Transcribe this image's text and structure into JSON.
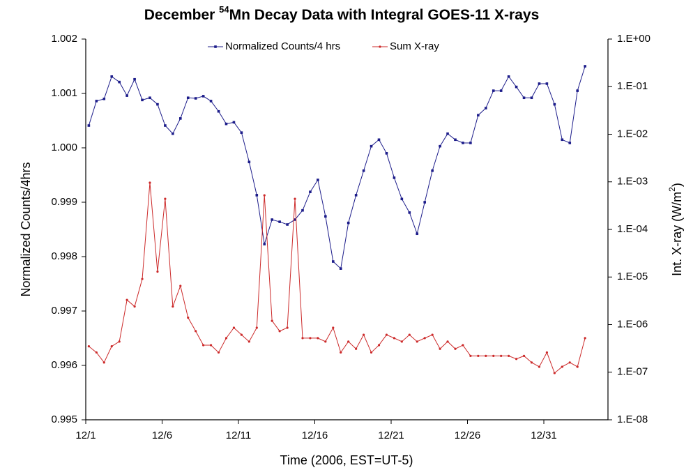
{
  "chart_data": {
    "type": "line",
    "title_prefix": "December ",
    "title_superscript": "54",
    "title_suffix": "Mn Decay Data with Integral  GOES-11 X-rays",
    "x_label": "Time (2006, EST=UT-5)",
    "y_label": "Normalized Counts/4hrs",
    "y2_label_prefix": "Int. X-ray (W/m",
    "y2_label_superscript": "2",
    "y2_label_suffix": ")",
    "y2_log": true,
    "grid": false,
    "legend": "top",
    "xlim": [
      1,
      35.2
    ],
    "xticks": [
      {
        "value": 1,
        "label": "12/1"
      },
      {
        "value": 6,
        "label": "12/6"
      },
      {
        "value": 11,
        "label": "12/11"
      },
      {
        "value": 16,
        "label": "12/16"
      },
      {
        "value": 21,
        "label": "12/21"
      },
      {
        "value": 26,
        "label": "12/26"
      },
      {
        "value": 31,
        "label": "12/31"
      }
    ],
    "ylim": [
      0.995,
      1.002
    ],
    "yticks": [
      0.995,
      0.996,
      0.997,
      0.998,
      0.999,
      {
        "value": 1,
        "label": "1.000"
      },
      1.001,
      1.002
    ],
    "y2lim": [
      1e-08,
      1
    ],
    "y2ticks": [
      {
        "value": 1e-08,
        "label": "1.E-08"
      },
      {
        "value": 1e-07,
        "label": "1.E-07"
      },
      {
        "value": 1e-06,
        "label": "1.E-06"
      },
      {
        "value": 1e-05,
        "label": "1.E-05"
      },
      {
        "value": 0.0001,
        "label": "1.E-04"
      },
      {
        "value": 0.001,
        "label": "1.E-03"
      },
      {
        "value": 0.01,
        "label": "1.E-02"
      },
      {
        "value": 0.1,
        "label": "1.E-01"
      },
      {
        "value": 1,
        "label": "1.E+00"
      }
    ],
    "x": [
      1.2,
      1.7,
      2.2,
      2.7,
      3.2,
      3.7,
      4.2,
      4.7,
      5.2,
      5.7,
      6.2,
      6.7,
      7.2,
      7.7,
      8.2,
      8.7,
      9.2,
      9.7,
      10.2,
      10.7,
      11.2,
      11.7,
      12.2,
      12.7,
      13.2,
      13.7,
      14.2,
      14.7,
      15.2,
      15.7,
      16.2,
      16.7,
      17.2,
      17.7,
      18.2,
      18.7,
      19.2,
      19.7,
      20.2,
      20.7,
      21.2,
      21.7,
      22.2,
      22.7,
      23.2,
      23.7,
      24.2,
      24.7,
      25.2,
      25.7,
      26.2,
      26.7,
      27.2,
      27.7,
      28.2,
      28.7,
      29.2,
      29.7,
      30.2,
      30.7,
      31.2,
      31.7,
      32.2,
      32.7,
      33.2,
      33.7
    ],
    "series": [
      {
        "name": "Normalized Counts/4 hrs",
        "color": "#1c1c8a",
        "marker": "square",
        "values": [
          1.00041,
          1.00086,
          1.0009,
          1.00131,
          1.00121,
          1.00096,
          1.00126,
          1.00088,
          1.00092,
          1.0008,
          1.00041,
          1.00026,
          1.00054,
          1.00092,
          1.00091,
          1.00095,
          1.00086,
          1.00067,
          1.00044,
          1.00047,
          1.00028,
          0.99974,
          0.99913,
          0.99823,
          0.99868,
          0.99864,
          0.99859,
          0.99868,
          0.99885,
          0.99919,
          0.99941,
          0.99874,
          0.99791,
          0.99778,
          0.99862,
          0.99913,
          0.99958,
          1.00003,
          1.00015,
          0.9999,
          0.99945,
          0.99906,
          0.99881,
          0.99842,
          0.999,
          0.99958,
          1.00003,
          1.00026,
          1.00015,
          1.00009,
          1.00009,
          1.0006,
          1.00073,
          1.00105,
          1.00105,
          1.00131,
          1.00112,
          1.00092,
          1.00092,
          1.00118,
          1.00118,
          1.0008,
          1.00015,
          1.00009,
          1.00105,
          1.0015
        ]
      },
      {
        "name": "Sum X-ray",
        "color": "#cc2a2a",
        "marker": "circle",
        "axis": "y2",
        "values": [
          3.5e-07,
          2.6e-07,
          1.6e-07,
          3.5e-07,
          4.4e-07,
          3.3e-06,
          2.4e-06,
          9.1e-06,
          0.00096,
          1.3e-05,
          0.00044,
          2.4e-06,
          6.5e-06,
          1.4e-06,
          7.3e-07,
          3.7e-07,
          3.7e-07,
          2.6e-07,
          5.2e-07,
          8.6e-07,
          6.1e-07,
          4.4e-07,
          8.6e-07,
          0.00052,
          1.2e-06,
          7.3e-07,
          8.6e-07,
          0.00044,
          5.2e-07,
          5.2e-07,
          5.2e-07,
          4.4e-07,
          8.6e-07,
          2.6e-07,
          4.4e-07,
          3.1e-07,
          6.1e-07,
          2.6e-07,
          3.7e-07,
          6.1e-07,
          5.2e-07,
          4.4e-07,
          6.1e-07,
          4.4e-07,
          5.2e-07,
          6.1e-07,
          3.1e-07,
          4.4e-07,
          3.1e-07,
          3.7e-07,
          2.2e-07,
          2.2e-07,
          2.2e-07,
          2.2e-07,
          2.2e-07,
          2.2e-07,
          1.9e-07,
          2.2e-07,
          1.6e-07,
          1.3e-07,
          2.6e-07,
          9.6e-08,
          1.3e-07,
          1.6e-07,
          1.3e-07,
          5.2e-07
        ]
      }
    ]
  }
}
